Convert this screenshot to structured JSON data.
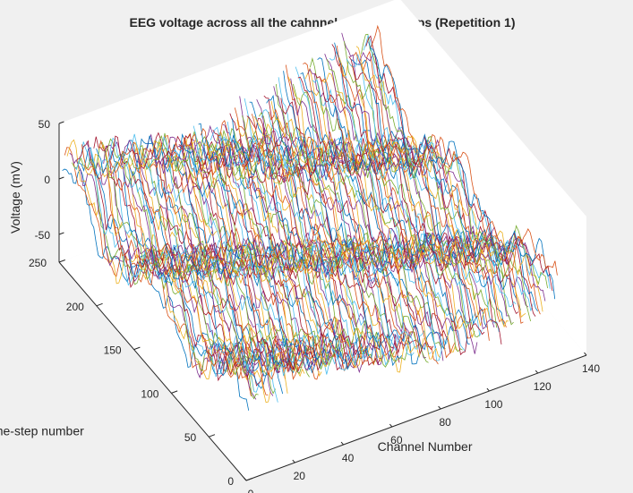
{
  "chart_data": {
    "type": "line",
    "subtype": "3d-waterfall",
    "title": "EEG voltage across all the cahnnels, all time-steps (Repetition 1)",
    "xlabel": "Channel Number",
    "ylabel": "Time-step number",
    "zlabel": "Voltage (mV)",
    "xlim": [
      0,
      140
    ],
    "ylim": [
      0,
      250
    ],
    "zlim": [
      -75,
      50
    ],
    "xticks": [
      "0",
      "20",
      "40",
      "60",
      "80",
      "100",
      "120",
      "140"
    ],
    "yticks": [
      "0",
      "50",
      "100",
      "150",
      "200",
      "250"
    ],
    "zticks": [
      "-50",
      "0",
      "50"
    ],
    "series_count": 128,
    "time_steps": 250,
    "voltage_range_approx": [
      -60,
      45
    ],
    "grid": false,
    "background": "#f0f0f0",
    "axes_color": "#ffffff",
    "line_colors": [
      "#0072bd",
      "#d95319",
      "#edb120",
      "#7e2f8e",
      "#77ac30",
      "#4dbeee",
      "#a2142f"
    ]
  }
}
